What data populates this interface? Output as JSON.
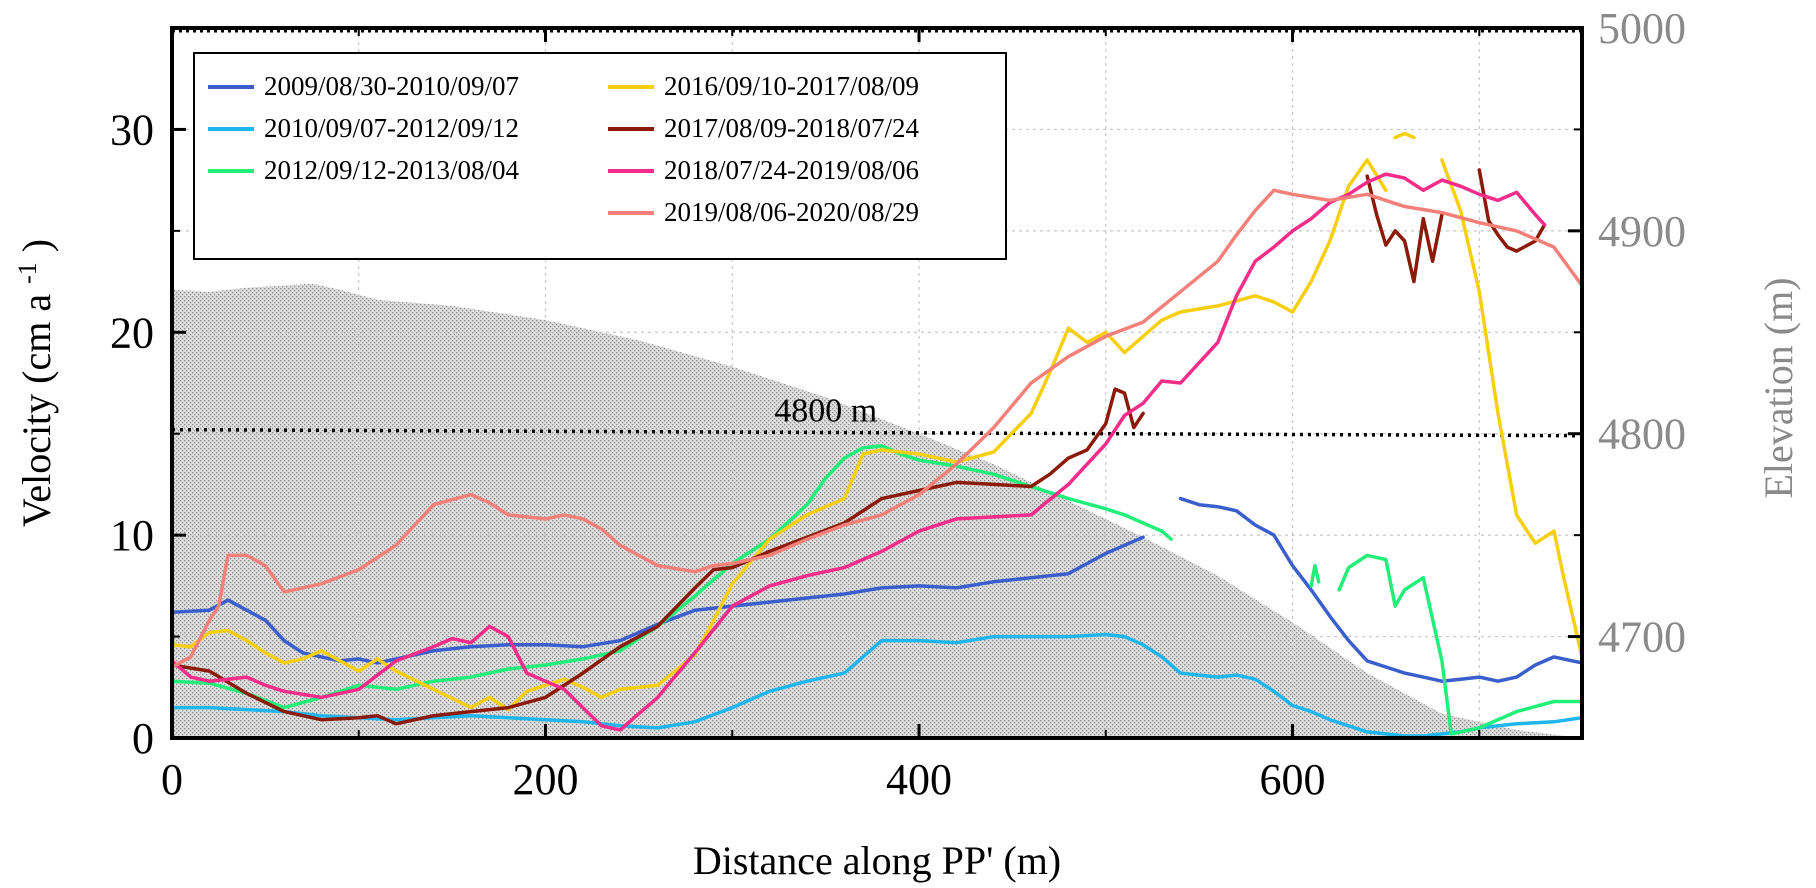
{
  "chart_data": {
    "type": "line",
    "title": "",
    "xlabel": "Distance along PP' (m)",
    "ylabel": "Velocity (cm a-1)",
    "ylabel_parts": {
      "base": "Velocity (cm a",
      "sup": "-1",
      "close": ")"
    },
    "y2label": "Elevation (m)",
    "xlim": [
      0,
      755
    ],
    "ylim": [
      0,
      35
    ],
    "y2lim": [
      4650,
      5000
    ],
    "x_ticks": [
      0,
      200,
      400,
      600
    ],
    "y_ticks": [
      0,
      10,
      20,
      30
    ],
    "y2_ticks": [
      4700,
      4800,
      4900,
      5000
    ],
    "grid": true,
    "legend_position": "top-left",
    "annotation": {
      "text": "4800 m",
      "x": 315,
      "y2": 4800
    },
    "elevation_profile": {
      "name": "Elevation",
      "color": "#d9d9d9",
      "x": [
        0,
        20,
        40,
        60,
        75,
        90,
        110,
        150,
        200,
        250,
        300,
        350,
        400,
        440,
        480,
        520,
        560,
        600,
        640,
        680,
        720,
        755
      ],
      "y2": [
        4871,
        4870,
        4872,
        4873,
        4874,
        4871,
        4866,
        4863,
        4856,
        4846,
        4833,
        4818,
        4800,
        4785,
        4767,
        4749,
        4730,
        4707,
        4682,
        4662,
        4654,
        4650
      ]
    },
    "reference_line": {
      "name": "4800 m",
      "x": [
        0,
        755
      ],
      "y2": [
        4802,
        4799
      ]
    },
    "series": [
      {
        "name": "2009/08/30-2010/09/07",
        "color": "#3a5fcd",
        "segments": [
          {
            "x": [
              0,
              20,
              30,
              40,
              50,
              60,
              70,
              80,
              90,
              100,
              110,
              120,
              140,
              160,
              180,
              200,
              220,
              240,
              260,
              280,
              300,
              320,
              340,
              360,
              380,
              400,
              420,
              440,
              460,
              480,
              490,
              500,
              510,
              520
            ],
            "y": [
              6.2,
              6.3,
              6.8,
              6.3,
              5.8,
              4.8,
              4.2,
              4.0,
              3.8,
              3.9,
              3.7,
              3.9,
              4.3,
              4.5,
              4.6,
              4.6,
              4.5,
              4.8,
              5.6,
              6.3,
              6.5,
              6.7,
              6.9,
              7.1,
              7.4,
              7.5,
              7.4,
              7.7,
              7.9,
              8.1,
              8.6,
              9.1,
              9.5,
              9.9
            ]
          },
          {
            "x": [
              540,
              550,
              560,
              570,
              580,
              590,
              600,
              610,
              620,
              630,
              640,
              650,
              660,
              670,
              680,
              690,
              700,
              710,
              720,
              730,
              740,
              755
            ],
            "y": [
              11.8,
              11.5,
              11.4,
              11.2,
              10.5,
              10.0,
              8.5,
              7.3,
              6.0,
              4.8,
              3.8,
              3.5,
              3.2,
              3.0,
              2.8,
              2.9,
              3.0,
              2.8,
              3.0,
              3.6,
              4.0,
              3.7
            ]
          }
        ]
      },
      {
        "name": "2010/09/07-2012/09/12",
        "color": "#1fb6f0",
        "segments": [
          {
            "x": [
              0,
              20,
              40,
              60,
              80,
              100,
              120,
              140,
              160,
              180,
              200,
              220,
              240,
              260,
              280,
              300,
              320,
              340,
              360,
              370,
              380,
              400,
              420,
              440,
              460,
              480,
              500,
              510,
              520,
              530,
              540,
              560,
              570,
              580,
              590,
              600,
              610,
              620,
              630,
              640,
              650,
              660,
              670,
              680,
              690,
              700,
              720,
              740,
              755
            ],
            "y": [
              1.5,
              1.5,
              1.4,
              1.3,
              1.1,
              1.0,
              0.9,
              1.0,
              1.1,
              1.0,
              0.9,
              0.8,
              0.6,
              0.5,
              0.8,
              1.5,
              2.3,
              2.8,
              3.2,
              4.0,
              4.8,
              4.8,
              4.7,
              5.0,
              5.0,
              5.0,
              5.1,
              5.0,
              4.6,
              4.0,
              3.2,
              3.0,
              3.1,
              2.9,
              2.3,
              1.6,
              1.3,
              0.9,
              0.6,
              0.3,
              0.2,
              0.1,
              0.1,
              0.2,
              0.3,
              0.5,
              0.7,
              0.8,
              1.0
            ]
          }
        ]
      },
      {
        "name": "2012/09/12-2013/08/04",
        "color": "#22ee7a",
        "segments": [
          {
            "x": [
              0,
              20,
              40,
              60,
              80,
              100,
              120,
              140,
              160,
              180,
              200,
              220,
              240,
              260,
              280,
              300,
              320,
              340,
              350,
              360,
              370,
              380,
              390,
              400,
              420,
              440,
              460,
              480,
              500,
              510,
              520,
              530,
              535
            ],
            "y": [
              2.8,
              2.7,
              2.2,
              1.5,
              2.0,
              2.6,
              2.4,
              2.8,
              3.0,
              3.4,
              3.6,
              3.9,
              4.3,
              5.5,
              7.0,
              8.6,
              9.8,
              11.5,
              12.8,
              13.8,
              14.3,
              14.4,
              14.0,
              13.7,
              13.4,
              13.0,
              12.4,
              11.8,
              11.3,
              11.0,
              10.6,
              10.2,
              9.8
            ]
          },
          {
            "x": [
              610,
              612,
              614
            ],
            "y": [
              7.5,
              8.5,
              7.7
            ]
          },
          {
            "x": [
              625,
              630,
              640,
              650,
              655,
              660,
              670,
              680,
              685,
              690,
              700,
              720,
              740,
              755
            ],
            "y": [
              7.3,
              8.4,
              9.0,
              8.8,
              6.5,
              7.3,
              7.9,
              3.8,
              0.2,
              0.3,
              0.5,
              1.3,
              1.8,
              1.8
            ]
          }
        ]
      },
      {
        "name": "2016/09/10-2017/08/09",
        "color": "#f7cf12",
        "segments": [
          {
            "x": [
              0,
              10,
              20,
              30,
              40,
              50,
              60,
              70,
              80,
              90,
              100,
              110,
              120,
              140,
              160,
              170,
              180,
              190,
              200,
              210,
              220,
              230,
              240,
              260,
              280,
              290,
              300,
              320,
              340,
              360,
              370,
              380,
              400,
              420,
              440,
              460,
              470,
              480,
              490,
              500,
              510,
              520,
              530,
              540,
              560,
              580,
              590,
              600,
              610,
              620,
              630,
              640,
              650
            ],
            "y": [
              4.6,
              4.5,
              5.2,
              5.3,
              4.8,
              4.2,
              3.7,
              3.9,
              4.3,
              3.8,
              3.3,
              3.9,
              3.3,
              2.4,
              1.5,
              2.0,
              1.4,
              2.3,
              2.6,
              2.9,
              2.5,
              2.0,
              2.4,
              2.6,
              4.1,
              5.8,
              7.6,
              9.8,
              11.0,
              11.8,
              14.0,
              14.2,
              14.0,
              13.6,
              14.1,
              16.0,
              18.0,
              20.2,
              19.5,
              20.0,
              19.0,
              19.8,
              20.6,
              21.0,
              21.3,
              21.8,
              21.5,
              21.0,
              22.5,
              24.5,
              27.2,
              28.5,
              27.0
            ]
          },
          {
            "x": [
              655,
              660,
              665
            ],
            "y": [
              29.6,
              29.8,
              29.6
            ]
          },
          {
            "x": [
              680,
              690,
              700,
              710,
              720,
              730,
              740,
              745,
              755
            ],
            "y": [
              28.5,
              26.0,
              22.0,
              16.0,
              11.0,
              9.6,
              10.2,
              8.0,
              4.0
            ]
          }
        ]
      },
      {
        "name": "2017/08/09-2018/07/24",
        "color": "#8b1a08",
        "segments": [
          {
            "x": [
              0,
              20,
              40,
              60,
              80,
              100,
              110,
              120,
              140,
              160,
              180,
              200,
              220,
              240,
              260,
              280,
              290,
              300,
              320,
              340,
              360,
              380,
              400,
              420,
              440,
              460,
              470,
              480,
              490,
              500,
              505,
              510,
              515,
              520
            ],
            "y": [
              3.6,
              3.3,
              2.2,
              1.3,
              0.9,
              1.0,
              1.1,
              0.7,
              1.1,
              1.3,
              1.5,
              2.0,
              3.2,
              4.5,
              5.5,
              7.4,
              8.3,
              8.4,
              9.2,
              9.9,
              10.6,
              11.8,
              12.2,
              12.6,
              12.5,
              12.4,
              13.0,
              13.8,
              14.2,
              15.5,
              17.2,
              17.0,
              15.3,
              16.0
            ]
          },
          {
            "x": [
              640,
              645,
              650,
              655,
              660,
              665,
              670,
              675,
              680
            ],
            "y": [
              27.7,
              25.8,
              24.3,
              25.0,
              24.5,
              22.5,
              25.6,
              23.5,
              25.8
            ]
          },
          {
            "x": [
              700,
              705,
              710,
              715,
              720,
              730,
              735
            ],
            "y": [
              28.0,
              25.5,
              24.8,
              24.2,
              24.0,
              24.5,
              25.3
            ]
          }
        ]
      },
      {
        "name": "2018/07/24-2019/08/06",
        "color": "#f52c89",
        "segments": [
          {
            "x": [
              0,
              10,
              20,
              30,
              40,
              50,
              60,
              80,
              100,
              120,
              140,
              150,
              160,
              170,
              180,
              190,
              200,
              210,
              220,
              230,
              240,
              260,
              280,
              300,
              320,
              340,
              360,
              380,
              400,
              420,
              440,
              460,
              480,
              500,
              510,
              520,
              530,
              540,
              560,
              570,
              580,
              590,
              600,
              610,
              620,
              630,
              640,
              650,
              660,
              670,
              680,
              690,
              700,
              710,
              720,
              730,
              735
            ],
            "y": [
              3.8,
              3.0,
              2.8,
              2.9,
              3.0,
              2.6,
              2.3,
              2.0,
              2.4,
              3.8,
              4.5,
              4.9,
              4.7,
              5.5,
              5.0,
              3.2,
              2.8,
              2.4,
              1.5,
              0.6,
              0.4,
              2.0,
              4.2,
              6.5,
              7.5,
              8.0,
              8.4,
              9.2,
              10.2,
              10.8,
              10.9,
              11.0,
              12.5,
              14.5,
              15.9,
              16.5,
              17.6,
              17.5,
              19.5,
              21.8,
              23.5,
              24.2,
              25.0,
              25.6,
              26.4,
              26.8,
              27.4,
              27.8,
              27.6,
              27.0,
              27.5,
              27.2,
              26.8,
              26.5,
              26.9,
              25.8,
              25.3
            ]
          }
        ]
      },
      {
        "name": "2019/08/06-2020/08/29",
        "color": "#f4807a",
        "segments": [
          {
            "x": [
              0,
              10,
              20,
              25,
              30,
              40,
              50,
              60,
              80,
              100,
              120,
              140,
              160,
              170,
              180,
              190,
              200,
              210,
              220,
              230,
              240,
              260,
              280,
              290,
              300,
              320,
              340,
              360,
              380,
              400,
              420,
              440,
              460,
              480,
              500,
              520,
              540,
              560,
              570,
              580,
              590,
              600,
              620,
              640,
              660,
              680,
              700,
              720,
              740,
              755
            ],
            "y": [
              3.5,
              4.0,
              5.8,
              6.5,
              9.0,
              9.0,
              8.5,
              7.2,
              7.6,
              8.3,
              9.5,
              11.5,
              12.0,
              11.6,
              11.0,
              10.9,
              10.8,
              11.0,
              10.8,
              10.3,
              9.5,
              8.5,
              8.2,
              8.5,
              8.6,
              9.0,
              9.8,
              10.5,
              11.0,
              12.0,
              13.5,
              15.3,
              17.5,
              18.8,
              19.8,
              20.5,
              22.0,
              23.5,
              24.8,
              26.0,
              27.0,
              26.8,
              26.5,
              26.8,
              26.2,
              25.9,
              25.4,
              25.0,
              24.2,
              22.3
            ]
          }
        ]
      }
    ]
  }
}
